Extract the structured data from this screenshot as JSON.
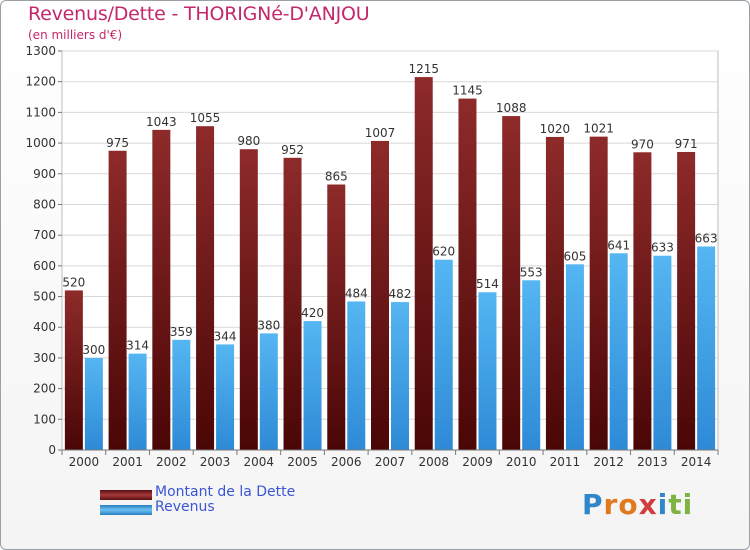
{
  "title": "Revenus/Dette - THORIGNé-D'ANJOU",
  "subtitle": "(en milliers d'€)",
  "colors": {
    "debt": "#7a1a1a",
    "revenue": "#3a9ee6",
    "title": "#c4286c",
    "legend_text": "#3b55d6"
  },
  "legend": {
    "debt_label": "Montant de la Dette",
    "revenue_label": "Revenus"
  },
  "logo": {
    "letters": [
      "P",
      "r",
      "o",
      "x",
      "i",
      "t",
      "i"
    ],
    "colors": [
      "#2f86c8",
      "#e07a1f",
      "#e07a1f",
      "#d23c3c",
      "#2f86c8",
      "#7cb342",
      "#7cb342"
    ]
  },
  "chart_data": {
    "type": "bar",
    "title": "Revenus/Dette - THORIGNé-D'ANJOU",
    "subtitle": "(en milliers d'€)",
    "categories": [
      "2000",
      "2001",
      "2002",
      "2003",
      "2004",
      "2005",
      "2006",
      "2007",
      "2008",
      "2009",
      "2010",
      "2011",
      "2012",
      "2013",
      "2014"
    ],
    "series": [
      {
        "name": "Montant de la Dette",
        "values": [
          520,
          975,
          1043,
          1055,
          980,
          952,
          865,
          1007,
          1215,
          1145,
          1088,
          1020,
          1021,
          970,
          971
        ]
      },
      {
        "name": "Revenus",
        "values": [
          300,
          314,
          359,
          344,
          380,
          420,
          484,
          482,
          620,
          514,
          553,
          605,
          641,
          633,
          663
        ]
      }
    ],
    "ylim": [
      0,
      1300
    ],
    "yticks": [
      0,
      100,
      200,
      300,
      400,
      500,
      600,
      700,
      800,
      900,
      1000,
      1100,
      1200,
      1300
    ],
    "grid": true,
    "legend_position": "bottom-left",
    "data_labels": true
  }
}
